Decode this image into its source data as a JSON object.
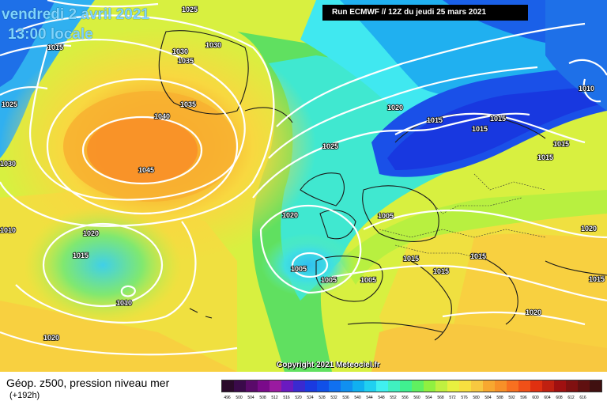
{
  "header": {
    "date": "vendredi 2 avril 2021",
    "time": "13:00 locale",
    "run": "Run ECMWF // 12Z du jeudi 25 mars 2021"
  },
  "copyright": "Copyright 2021 Meteociel.fr",
  "legend": {
    "title": "Géop. z500, pression niveau mer",
    "subtitle": "(+192h)",
    "ticks": [
      "496",
      "500",
      "504",
      "508",
      "512",
      "516",
      "520",
      "524",
      "528",
      "532",
      "536",
      "540",
      "544",
      "548",
      "552",
      "556",
      "560",
      "564",
      "568",
      "572",
      "576",
      "580",
      "584",
      "588",
      "592",
      "596",
      "600",
      "604",
      "608",
      "612",
      "616"
    ],
    "colors": [
      "#2a0a2a",
      "#3a0a4a",
      "#5a0a6a",
      "#7a0a8a",
      "#9a1aa0",
      "#6a1ac0",
      "#3a2ad0",
      "#1a3ae0",
      "#1050e8",
      "#1070f0",
      "#1090f0",
      "#10b0f0",
      "#20d0f0",
      "#40f0f0",
      "#40f0c0",
      "#40f090",
      "#60f060",
      "#90f040",
      "#c0f040",
      "#e8f040",
      "#f8e040",
      "#f8c840",
      "#f8a830",
      "#f89028",
      "#f87020",
      "#f05018",
      "#e03010",
      "#c02010",
      "#a01010",
      "#801010",
      "#601010",
      "#401010"
    ]
  },
  "isobars": [
    "1025",
    "1015",
    "1025",
    "1030",
    "1030",
    "1035",
    "1035",
    "1040",
    "1045",
    "1030",
    "1010",
    "1020",
    "1015",
    "1010",
    "1020",
    "1025",
    "1020",
    "1005",
    "1005",
    "1005",
    "1005",
    "1015",
    "1015",
    "1015",
    "1015",
    "1015",
    "1010",
    "1015",
    "1015",
    "1020",
    "1015",
    "1020",
    "1015",
    "1020"
  ]
}
